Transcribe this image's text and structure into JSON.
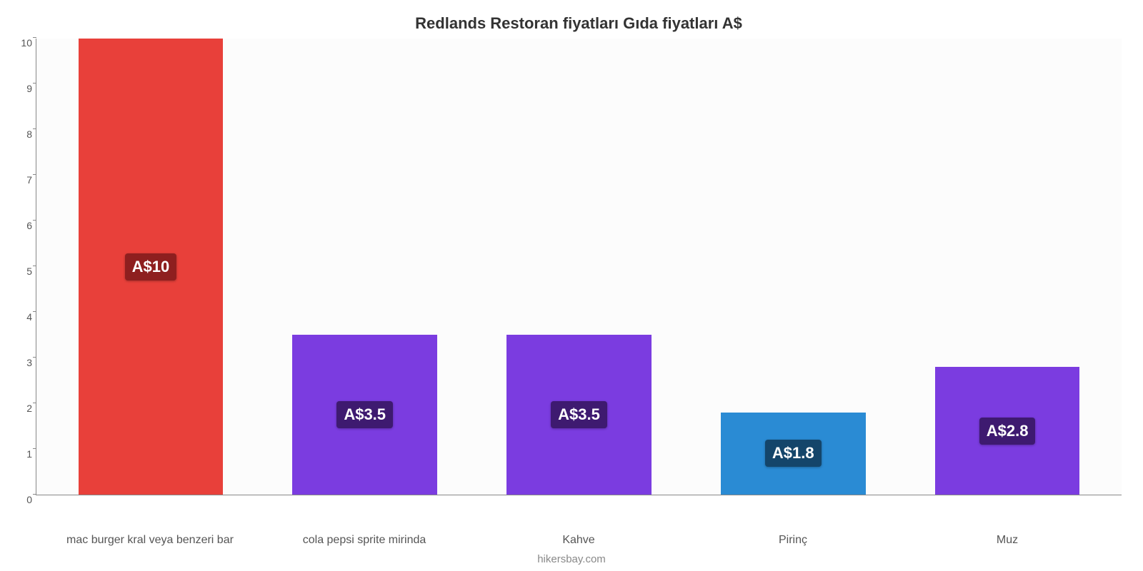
{
  "chart": {
    "type": "bar",
    "title": "Redlands Restoran fiyatları Gıda fiyatları A$",
    "title_fontsize": 22,
    "title_color": "#333333",
    "categories": [
      "mac burger kral veya benzeri bar",
      "cola pepsi sprite mirinda",
      "Kahve",
      "Pirinç",
      "Muz"
    ],
    "values": [
      10,
      3.5,
      3.5,
      1.8,
      2.8
    ],
    "display_labels": [
      "A$10",
      "A$3.5",
      "A$3.5",
      "A$1.8",
      "A$2.8"
    ],
    "bar_colors": [
      "#e8403a",
      "#7b3ce0",
      "#7b3ce0",
      "#2a8bd4",
      "#7b3ce0"
    ],
    "label_bg_colors": [
      "#8e1f1f",
      "#3e1a70",
      "#3e1a70",
      "#14456a",
      "#3e1a70"
    ],
    "label_fontsize": 22,
    "ylim": [
      0,
      10
    ],
    "ytick_step": 1,
    "background_color": "#fcfcfc",
    "axis_color": "#888888",
    "xlabel_fontsize": 16,
    "ytick_fontsize": 14,
    "bar_width": 0.78,
    "credit": "hikersbay.com",
    "credit_fontsize": 15,
    "credit_color": "#888888"
  }
}
